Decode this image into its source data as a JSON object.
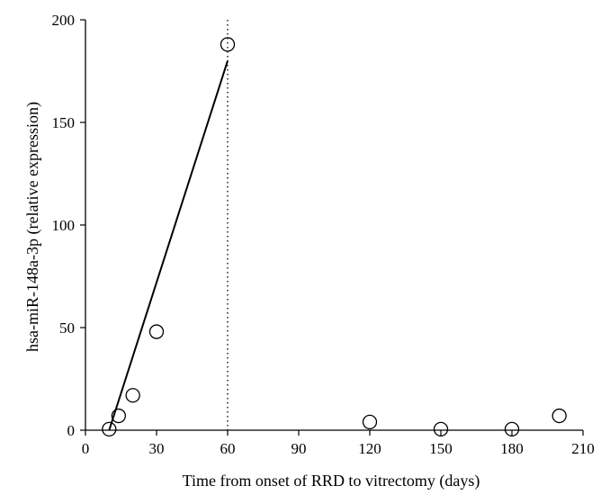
{
  "chart_data": {
    "type": "scatter",
    "title": "",
    "xlabel": "Time from onset of RRD to vitrectomy (days)",
    "ylabel": "hsa-miR-148a-3p (relative expression)",
    "xlim": [
      0,
      210
    ],
    "ylim": [
      0,
      200
    ],
    "xticks": [
      0,
      30,
      60,
      90,
      120,
      150,
      180,
      210
    ],
    "yticks": [
      0,
      50,
      100,
      150,
      200
    ],
    "grid": false,
    "legend": "none",
    "points": [
      {
        "x": 10,
        "y": 0.5
      },
      {
        "x": 14,
        "y": 7
      },
      {
        "x": 20,
        "y": 17
      },
      {
        "x": 30,
        "y": 48
      },
      {
        "x": 60,
        "y": 188
      },
      {
        "x": 120,
        "y": 4
      },
      {
        "x": 150,
        "y": 0.5
      },
      {
        "x": 180,
        "y": 0.5
      },
      {
        "x": 200,
        "y": 7
      }
    ],
    "fit_line": {
      "x": [
        10,
        60
      ],
      "y": [
        0,
        180
      ]
    },
    "reference_line_x": 60
  }
}
